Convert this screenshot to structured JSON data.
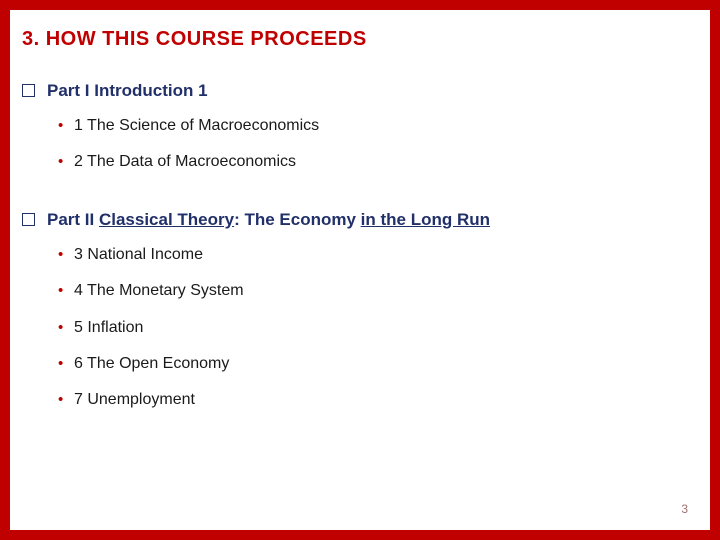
{
  "slide": {
    "title": "3. HOW THIS COURSE PROCEEDS",
    "pageNumber": "3",
    "borderColor": "#c00000",
    "backgroundColor": "#ffffff",
    "titleColor": "#c00000",
    "sectionTitleColor": "#22306a",
    "bulletColor": "#c00000",
    "textColor": "#1a1a1a"
  },
  "sections": [
    {
      "titlePlain": "Part I Introduction 1",
      "titleHtmlParts": [
        {
          "text": "Part I Introduction 1",
          "underlined": false
        }
      ],
      "items": [
        "1 The Science of Macroeconomics",
        "2 The Data of Macroeconomics"
      ]
    },
    {
      "titlePlain": "Part II Classical Theory: The Economy in the Long Run",
      "titleHtmlParts": [
        {
          "text": "Part II ",
          "underlined": false
        },
        {
          "text": "Classical Theory",
          "underlined": true
        },
        {
          "text": ": The Economy ",
          "underlined": false
        },
        {
          "text": "in the Long Run",
          "underlined": true
        }
      ],
      "items": [
        "3 National Income",
        "4 The Monetary System",
        "5 Inflation",
        "6 The Open Economy",
        "7 Unemployment"
      ]
    }
  ]
}
